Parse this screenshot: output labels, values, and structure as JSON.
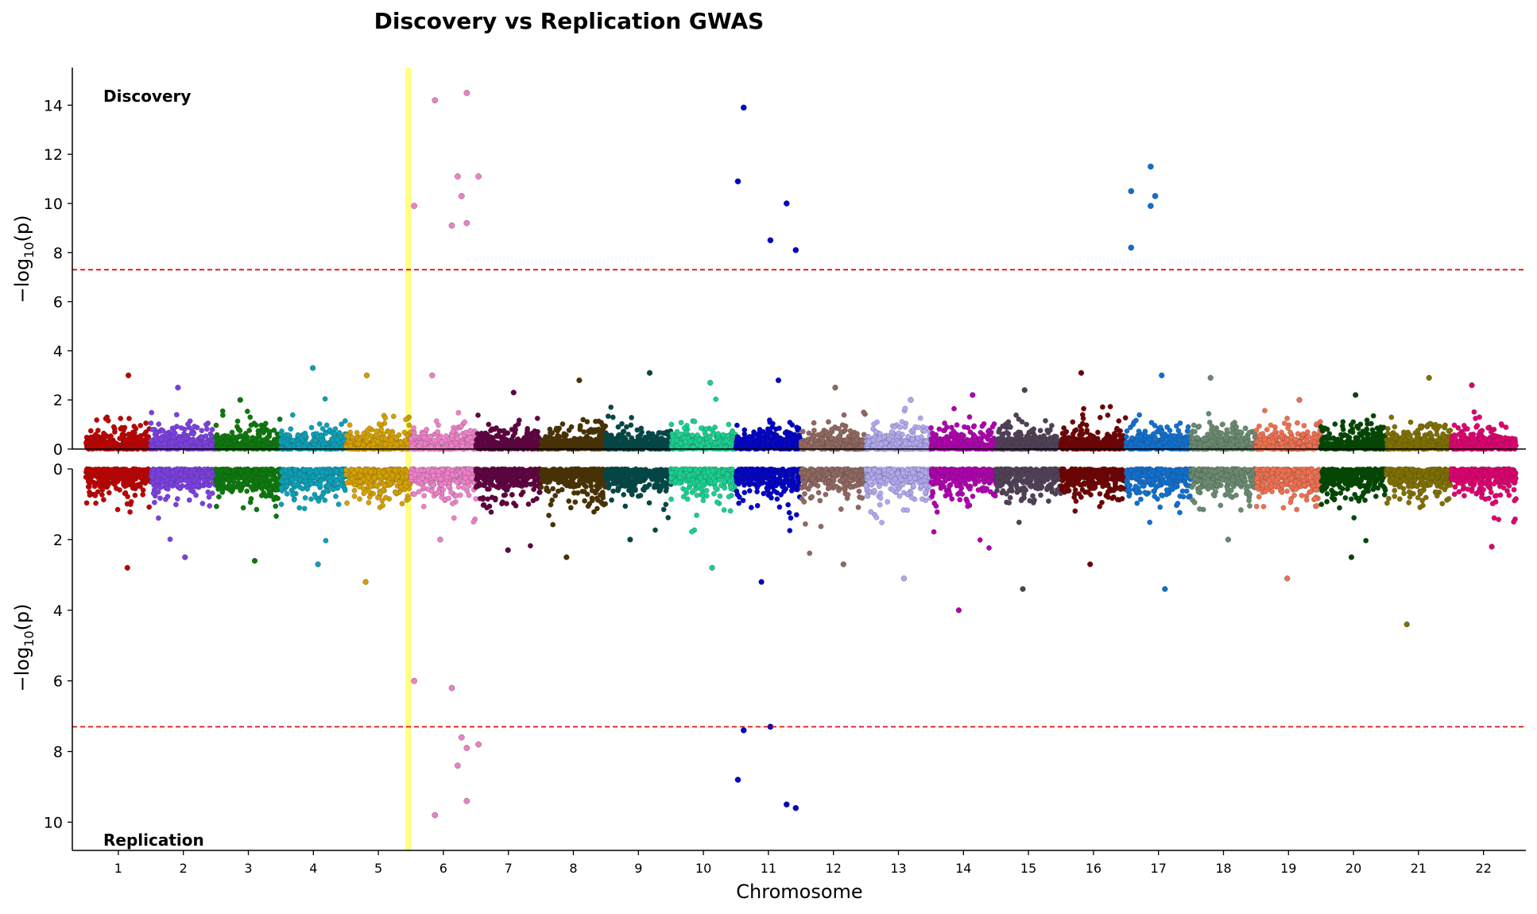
{
  "chart_data": {
    "type": "scatter",
    "subtype": "miami-manhattan",
    "title": "Discovery vs Replication GWAS",
    "xlabel": "Chromosome",
    "ylabel": "−log₁₀(p)",
    "ylabel_prefix": "−log",
    "ylabel_sub": "10",
    "ylabel_suffix": "(p)",
    "chromosomes": [
      "1",
      "2",
      "3",
      "4",
      "5",
      "6",
      "7",
      "8",
      "9",
      "10",
      "11",
      "12",
      "13",
      "14",
      "15",
      "16",
      "17",
      "18",
      "19",
      "20",
      "21",
      "22"
    ],
    "chromosome_colors": [
      "#c00000",
      "#7b3fe0",
      "#0a7a0a",
      "#0aa0b8",
      "#d4a000",
      "#ee80c8",
      "#600040",
      "#4a3200",
      "#004848",
      "#18d090",
      "#0000c8",
      "#906860",
      "#b0a8ee",
      "#b000b0",
      "#504058",
      "#700000",
      "#1070d0",
      "#6a8a70",
      "#ee7050",
      "#004800",
      "#807000",
      "#e00070"
    ],
    "significance_threshold": 7.3,
    "highlight_region": {
      "chromosome": "5",
      "position": 0.96,
      "color": "#ffff80"
    },
    "panels": [
      {
        "name": "Discovery",
        "label": "Discovery",
        "ylim": [
          0,
          15.5
        ],
        "yticks": [
          0,
          2,
          4,
          6,
          8,
          10,
          12,
          14
        ],
        "inverted": false,
        "max_background": [
          3.0,
          2.5,
          2.0,
          3.3,
          3.0,
          3.0,
          2.3,
          2.8,
          3.1,
          2.7,
          2.8,
          2.5,
          2.0,
          2.2,
          2.4,
          3.1,
          3.0,
          2.9,
          2.0,
          2.2,
          2.9,
          2.6
        ],
        "top_hits": [
          {
            "chrom": "6",
            "pos": 0.05,
            "value": 9.9
          },
          {
            "chrom": "6",
            "pos": 0.37,
            "value": 14.2
          },
          {
            "chrom": "6",
            "pos": 0.63,
            "value": 9.1
          },
          {
            "chrom": "6",
            "pos": 0.72,
            "value": 11.1
          },
          {
            "chrom": "6",
            "pos": 0.78,
            "value": 10.3
          },
          {
            "chrom": "6",
            "pos": 0.86,
            "value": 14.5
          },
          {
            "chrom": "6",
            "pos": 0.86,
            "value": 9.2
          },
          {
            "chrom": "6",
            "pos": 1.04,
            "value": 11.1
          },
          {
            "chrom": "11",
            "pos": 0.03,
            "value": 10.9
          },
          {
            "chrom": "11",
            "pos": 0.12,
            "value": 13.9
          },
          {
            "chrom": "11",
            "pos": 0.53,
            "value": 8.5
          },
          {
            "chrom": "11",
            "pos": 0.78,
            "value": 10.0
          },
          {
            "chrom": "11",
            "pos": 0.92,
            "value": 8.1
          },
          {
            "chrom": "17",
            "pos": 0.08,
            "value": 10.5
          },
          {
            "chrom": "17",
            "pos": 0.08,
            "value": 8.2
          },
          {
            "chrom": "17",
            "pos": 0.38,
            "value": 11.5
          },
          {
            "chrom": "17",
            "pos": 0.38,
            "value": 9.9
          },
          {
            "chrom": "17",
            "pos": 0.45,
            "value": 10.3
          }
        ]
      },
      {
        "name": "Replication",
        "label": "Replication",
        "ylim": [
          0,
          10.8
        ],
        "yticks": [
          0,
          2,
          4,
          6,
          8,
          10
        ],
        "inverted": true,
        "max_background": [
          2.8,
          2.5,
          2.6,
          2.7,
          3.2,
          2.0,
          2.3,
          2.5,
          2.0,
          2.8,
          3.2,
          2.7,
          3.1,
          4.0,
          3.4,
          2.7,
          3.4,
          2.0,
          3.1,
          2.5,
          4.4,
          2.2
        ],
        "top_hits": [
          {
            "chrom": "6",
            "pos": 0.05,
            "value": 6.0
          },
          {
            "chrom": "6",
            "pos": 0.63,
            "value": 6.2
          },
          {
            "chrom": "6",
            "pos": 0.37,
            "value": 9.8
          },
          {
            "chrom": "6",
            "pos": 0.72,
            "value": 8.4
          },
          {
            "chrom": "6",
            "pos": 0.78,
            "value": 7.6
          },
          {
            "chrom": "6",
            "pos": 0.86,
            "value": 7.9
          },
          {
            "chrom": "6",
            "pos": 0.86,
            "value": 9.4
          },
          {
            "chrom": "6",
            "pos": 1.04,
            "value": 7.8
          },
          {
            "chrom": "11",
            "pos": 0.03,
            "value": 8.8
          },
          {
            "chrom": "11",
            "pos": 0.12,
            "value": 7.4
          },
          {
            "chrom": "11",
            "pos": 0.53,
            "value": 7.3
          },
          {
            "chrom": "11",
            "pos": 0.78,
            "value": 9.5
          },
          {
            "chrom": "11",
            "pos": 0.92,
            "value": 9.6
          }
        ]
      }
    ]
  }
}
